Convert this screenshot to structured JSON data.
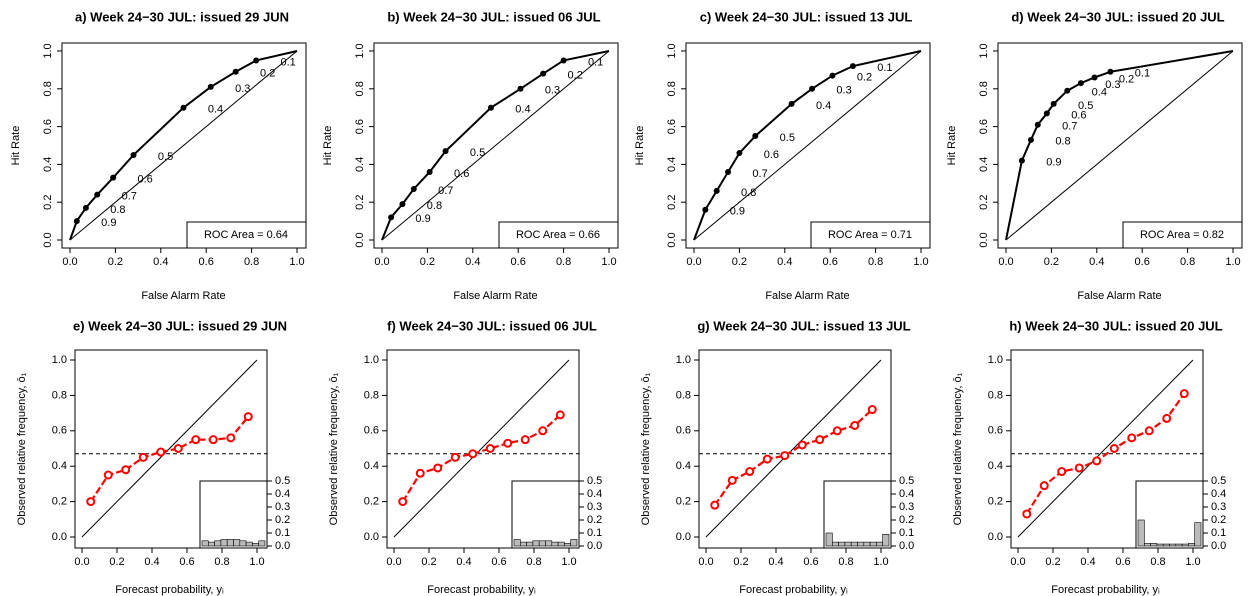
{
  "chart_data": [
    {
      "type": "roc",
      "title": "a) Week 24−30 JUL: issued 29 JUN",
      "xlabel": "False Alarm Rate",
      "ylabel": "Hit Rate",
      "x": [
        0.03,
        0.07,
        0.12,
        0.19,
        0.28,
        0.5,
        0.62,
        0.73,
        0.82
      ],
      "y": [
        0.1,
        0.17,
        0.24,
        0.33,
        0.45,
        0.7,
        0.81,
        0.89,
        0.95
      ],
      "thresholds": [
        0.9,
        0.8,
        0.7,
        0.6,
        0.5,
        0.4,
        0.3,
        0.2,
        0.1
      ],
      "annotation": "ROC Area = 0.64",
      "xlim": [
        0,
        1
      ],
      "ylim": [
        0,
        1
      ],
      "xticks": [
        {
          "value": 0,
          "label": "0.0"
        },
        0.2,
        0.4,
        0.6,
        0.8,
        {
          "value": 1,
          "label": "1.0"
        }
      ],
      "yticks": [
        {
          "value": 0,
          "label": "0.0"
        },
        0.2,
        0.4,
        0.6,
        0.8,
        {
          "value": 1,
          "label": "1.0"
        }
      ]
    },
    {
      "type": "roc",
      "title": "b) Week 24−30 JUL: issued 06 JUL",
      "xlabel": "False Alarm Rate",
      "ylabel": "Hit Rate",
      "x": [
        0.04,
        0.09,
        0.14,
        0.21,
        0.28,
        0.48,
        0.61,
        0.71,
        0.8
      ],
      "y": [
        0.12,
        0.19,
        0.27,
        0.36,
        0.47,
        0.7,
        0.8,
        0.88,
        0.95
      ],
      "thresholds": [
        0.9,
        0.8,
        0.7,
        0.6,
        0.5,
        0.4,
        0.3,
        0.2,
        0.1
      ],
      "annotation": "ROC Area = 0.66",
      "xlim": [
        0,
        1
      ],
      "ylim": [
        0,
        1
      ],
      "xticks": [
        {
          "value": 0,
          "label": "0.0"
        },
        0.2,
        0.4,
        0.6,
        0.8,
        {
          "value": 1,
          "label": "1.0"
        }
      ],
      "yticks": [
        {
          "value": 0,
          "label": "0.0"
        },
        0.2,
        0.4,
        0.6,
        0.8,
        {
          "value": 1,
          "label": "1.0"
        }
      ]
    },
    {
      "type": "roc",
      "title": "c) Week 24−30 JUL: issued 13 JUL",
      "xlabel": "False Alarm Rate",
      "ylabel": "Hit Rate",
      "x": [
        0.05,
        0.1,
        0.15,
        0.2,
        0.27,
        0.43,
        0.52,
        0.61,
        0.7
      ],
      "y": [
        0.16,
        0.26,
        0.36,
        0.46,
        0.55,
        0.72,
        0.8,
        0.87,
        0.92
      ],
      "thresholds": [
        0.9,
        0.8,
        0.7,
        0.6,
        0.5,
        0.4,
        0.3,
        0.2,
        0.1
      ],
      "annotation": "ROC Area = 0.71",
      "xlim": [
        0,
        1
      ],
      "ylim": [
        0,
        1
      ],
      "xticks": [
        {
          "value": 0,
          "label": "0.0"
        },
        0.2,
        0.4,
        0.6,
        0.8,
        {
          "value": 1,
          "label": "1.0"
        }
      ],
      "yticks": [
        {
          "value": 0,
          "label": "0.0"
        },
        0.2,
        0.4,
        0.6,
        0.8,
        {
          "value": 1,
          "label": "1.0"
        }
      ]
    },
    {
      "type": "roc",
      "title": "d) Week 24−30 JUL: issued 20 JUL",
      "xlabel": "False Alarm Rate",
      "ylabel": "Hit Rate",
      "x": [
        0.07,
        0.11,
        0.14,
        0.18,
        0.21,
        0.27,
        0.33,
        0.39,
        0.46
      ],
      "y": [
        0.42,
        0.53,
        0.61,
        0.67,
        0.72,
        0.79,
        0.83,
        0.86,
        0.89
      ],
      "thresholds": [
        0.9,
        0.8,
        0.7,
        0.6,
        0.5,
        0.4,
        0.3,
        0.2,
        0.1
      ],
      "annotation": "ROC Area = 0.82",
      "xlim": [
        0,
        1
      ],
      "ylim": [
        0,
        1
      ],
      "xticks": [
        {
          "value": 0,
          "label": "0.0"
        },
        0.2,
        0.4,
        0.6,
        0.8,
        {
          "value": 1,
          "label": "1.0"
        }
      ],
      "yticks": [
        {
          "value": 0,
          "label": "0.0"
        },
        0.2,
        0.4,
        0.6,
        0.8,
        {
          "value": 1,
          "label": "1.0"
        }
      ]
    },
    {
      "type": "reliability",
      "title": "e) Week 24−30 JUL: issued 29 JUN",
      "xlabel": "Forecast probability, yᵢ",
      "ylabel": "Observed relative frequency, ō₁",
      "x": [
        0.05,
        0.15,
        0.25,
        0.35,
        0.45,
        0.55,
        0.65,
        0.75,
        0.85,
        0.95
      ],
      "y": [
        0.2,
        0.35,
        0.38,
        0.45,
        0.48,
        0.5,
        0.55,
        0.55,
        0.56,
        0.68
      ],
      "color": "#ff0000",
      "climatology": 0.47,
      "xlim": [
        0,
        1
      ],
      "ylim": [
        0,
        1
      ],
      "xticks": [
        {
          "value": 0,
          "label": "0.0"
        },
        0.2,
        0.4,
        0.6,
        0.8,
        {
          "value": 1,
          "label": "1.0"
        }
      ],
      "yticks": [
        {
          "value": 0,
          "label": "0.0"
        },
        0.2,
        0.4,
        0.6,
        0.8,
        {
          "value": 1,
          "label": "1.0"
        }
      ],
      "inset": {
        "bins": [
          0,
          0.1,
          0.2,
          0.3,
          0.4,
          0.5,
          0.6,
          0.7,
          0.8,
          0.9,
          1
        ],
        "counts": [
          0.04,
          0.03,
          0.04,
          0.05,
          0.05,
          0.05,
          0.04,
          0.03,
          0.02,
          0.04
        ],
        "color": "#bbbbbb",
        "ylim": [
          0,
          0.5
        ],
        "yticks": [
          {
            "value": 0,
            "label": "0.0"
          },
          0.1,
          0.2,
          0.3,
          0.4,
          0.5
        ]
      }
    },
    {
      "type": "reliability",
      "title": "f) Week 24−30 JUL: issued 06 JUL",
      "xlabel": "Forecast probability, yᵢ",
      "ylabel": "Observed relative frequency, ō₁",
      "x": [
        0.05,
        0.15,
        0.25,
        0.35,
        0.45,
        0.55,
        0.65,
        0.75,
        0.85,
        0.95
      ],
      "y": [
        0.2,
        0.36,
        0.39,
        0.45,
        0.47,
        0.5,
        0.53,
        0.55,
        0.6,
        0.69
      ],
      "color": "#ff0000",
      "climatology": 0.47,
      "xlim": [
        0,
        1
      ],
      "ylim": [
        0,
        1
      ],
      "xticks": [
        {
          "value": 0,
          "label": "0.0"
        },
        0.2,
        0.4,
        0.6,
        0.8,
        {
          "value": 1,
          "label": "1.0"
        }
      ],
      "yticks": [
        {
          "value": 0,
          "label": "0.0"
        },
        0.2,
        0.4,
        0.6,
        0.8,
        {
          "value": 1,
          "label": "1.0"
        }
      ],
      "inset": {
        "bins": [
          0,
          0.1,
          0.2,
          0.3,
          0.4,
          0.5,
          0.6,
          0.7,
          0.8,
          0.9,
          1
        ],
        "counts": [
          0.05,
          0.03,
          0.03,
          0.04,
          0.04,
          0.04,
          0.03,
          0.03,
          0.02,
          0.05
        ],
        "color": "#bbbbbb",
        "ylim": [
          0,
          0.5
        ],
        "yticks": [
          {
            "value": 0,
            "label": "0.0"
          },
          0.1,
          0.2,
          0.3,
          0.4,
          0.5
        ]
      }
    },
    {
      "type": "reliability",
      "title": "g) Week 24−30 JUL: issued 13 JUL",
      "xlabel": "Forecast probability, yᵢ",
      "ylabel": "Observed relative frequency, ō₁",
      "x": [
        0.05,
        0.15,
        0.25,
        0.35,
        0.45,
        0.55,
        0.65,
        0.75,
        0.85,
        0.95
      ],
      "y": [
        0.18,
        0.32,
        0.37,
        0.44,
        0.46,
        0.52,
        0.55,
        0.6,
        0.63,
        0.72
      ],
      "color": "#ff0000",
      "climatology": 0.47,
      "xlim": [
        0,
        1
      ],
      "ylim": [
        0,
        1
      ],
      "xticks": [
        {
          "value": 0,
          "label": "0.0"
        },
        0.2,
        0.4,
        0.6,
        0.8,
        {
          "value": 1,
          "label": "1.0"
        }
      ],
      "yticks": [
        {
          "value": 0,
          "label": "0.0"
        },
        0.2,
        0.4,
        0.6,
        0.8,
        {
          "value": 1,
          "label": "1.0"
        }
      ],
      "inset": {
        "bins": [
          0,
          0.1,
          0.2,
          0.3,
          0.4,
          0.5,
          0.6,
          0.7,
          0.8,
          0.9,
          1
        ],
        "counts": [
          0.1,
          0.03,
          0.03,
          0.03,
          0.03,
          0.03,
          0.03,
          0.03,
          0.03,
          0.09
        ],
        "color": "#bbbbbb",
        "ylim": [
          0,
          0.5
        ],
        "yticks": [
          {
            "value": 0,
            "label": "0.0"
          },
          0.1,
          0.2,
          0.3,
          0.4,
          0.5
        ]
      }
    },
    {
      "type": "reliability",
      "title": "h) Week 24−30 JUL: issued 20 JUL",
      "xlabel": "Forecast probability, yᵢ",
      "ylabel": "Observed relative frequency, ō₁",
      "x": [
        0.05,
        0.15,
        0.25,
        0.35,
        0.45,
        0.55,
        0.65,
        0.75,
        0.85,
        0.95
      ],
      "y": [
        0.13,
        0.29,
        0.37,
        0.39,
        0.43,
        0.5,
        0.56,
        0.6,
        0.67,
        0.81
      ],
      "color": "#ff0000",
      "climatology": 0.47,
      "xlim": [
        0,
        1
      ],
      "ylim": [
        0,
        1
      ],
      "xticks": [
        {
          "value": 0,
          "label": "0.0"
        },
        0.2,
        0.4,
        0.6,
        0.8,
        {
          "value": 1,
          "label": "1.0"
        }
      ],
      "yticks": [
        {
          "value": 0,
          "label": "0.0"
        },
        0.2,
        0.4,
        0.6,
        0.8,
        {
          "value": 1,
          "label": "1.0"
        }
      ],
      "inset": {
        "bins": [
          0,
          0.1,
          0.2,
          0.3,
          0.4,
          0.5,
          0.6,
          0.7,
          0.8,
          0.9,
          1
        ],
        "counts": [
          0.2,
          0.02,
          0.02,
          0.015,
          0.015,
          0.015,
          0.015,
          0.015,
          0.02,
          0.18
        ],
        "color": "#bbbbbb",
        "ylim": [
          0,
          0.5
        ],
        "yticks": [
          {
            "value": 0,
            "label": "0.0"
          },
          0.1,
          0.2,
          0.3,
          0.4,
          0.5
        ]
      }
    }
  ]
}
